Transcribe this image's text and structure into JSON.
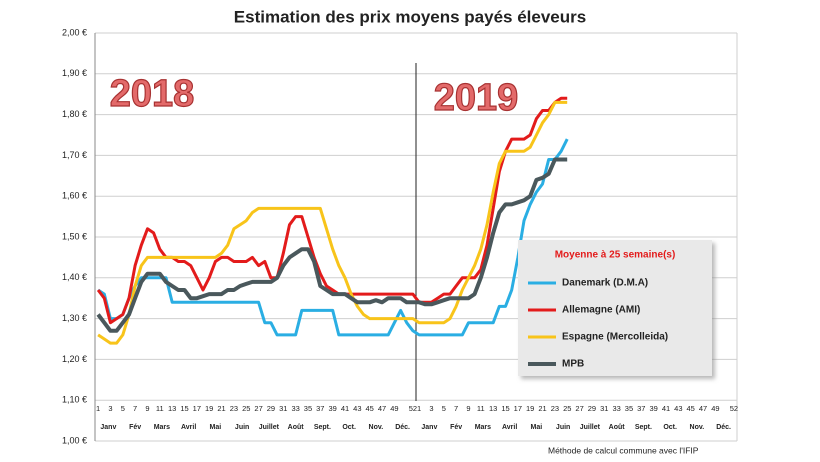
{
  "chart_data": {
    "type": "line",
    "title": "Estimation des prix moyens payés éleveurs",
    "annotations": [
      "2018",
      "2019"
    ],
    "legend_title": "Moyenne à  25 semaine(s)",
    "footnote": "Méthode de calcul commune avec l'IFIP",
    "months": [
      "Janv",
      "Fév",
      "Mars",
      "Avril",
      "Mai",
      "Juin",
      "Juillet",
      "Août",
      "Sept.",
      "Oct.",
      "Nov.",
      "Déc."
    ],
    "x": [
      1,
      2,
      3,
      4,
      5,
      6,
      7,
      8,
      9,
      10,
      11,
      12,
      13,
      14,
      15,
      16,
      17,
      18,
      19,
      20,
      21,
      22,
      23,
      24,
      25,
      26,
      27,
      28,
      29,
      30,
      31,
      32,
      33,
      34,
      35,
      36,
      37,
      38,
      39,
      40,
      41,
      42,
      43,
      44,
      45,
      46,
      47,
      48,
      49,
      50,
      51,
      52,
      53,
      54,
      55,
      56,
      57,
      58,
      59,
      60,
      61,
      62,
      63,
      64,
      65,
      66,
      67,
      68,
      69,
      70,
      71,
      72,
      73,
      74,
      75,
      76,
      77
    ],
    "series": [
      {
        "name": "Danemark (D.M.A)",
        "color": "#2aaee3",
        "values": [
          1.37,
          1.36,
          1.3,
          1.3,
          1.31,
          1.35,
          1.38,
          1.4,
          1.4,
          1.4,
          1.4,
          1.4,
          1.34,
          1.34,
          1.34,
          1.34,
          1.34,
          1.34,
          1.34,
          1.34,
          1.34,
          1.34,
          1.34,
          1.34,
          1.34,
          1.34,
          1.34,
          1.29,
          1.29,
          1.26,
          1.26,
          1.26,
          1.26,
          1.32,
          1.32,
          1.32,
          1.32,
          1.32,
          1.32,
          1.26,
          1.26,
          1.26,
          1.26,
          1.26,
          1.26,
          1.26,
          1.26,
          1.26,
          1.29,
          1.32,
          1.29,
          1.27,
          1.26,
          1.26,
          1.26,
          1.26,
          1.26,
          1.26,
          1.26,
          1.26,
          1.29,
          1.29,
          1.29,
          1.29,
          1.29,
          1.33,
          1.33,
          1.37,
          1.45,
          1.54,
          1.58,
          1.61,
          1.63,
          1.69,
          1.69,
          1.71,
          1.74
        ]
      },
      {
        "name": "Allemagne (AMI)",
        "color": "#e31b1b",
        "values": [
          1.37,
          1.35,
          1.29,
          1.3,
          1.31,
          1.35,
          1.43,
          1.48,
          1.52,
          1.51,
          1.47,
          1.45,
          1.45,
          1.44,
          1.44,
          1.43,
          1.4,
          1.37,
          1.4,
          1.44,
          1.45,
          1.45,
          1.44,
          1.44,
          1.44,
          1.45,
          1.43,
          1.44,
          1.4,
          1.4,
          1.46,
          1.53,
          1.55,
          1.55,
          1.5,
          1.45,
          1.41,
          1.38,
          1.37,
          1.36,
          1.36,
          1.36,
          1.36,
          1.36,
          1.36,
          1.36,
          1.36,
          1.36,
          1.36,
          1.36,
          1.36,
          1.36,
          1.34,
          1.34,
          1.34,
          1.35,
          1.36,
          1.36,
          1.38,
          1.4,
          1.4,
          1.4,
          1.42,
          1.48,
          1.57,
          1.66,
          1.71,
          1.74,
          1.74,
          1.74,
          1.75,
          1.79,
          1.81,
          1.81,
          1.83,
          1.84,
          1.84
        ]
      },
      {
        "name": "Espagne (Mercolleida)",
        "color": "#f8c41a",
        "values": [
          1.26,
          1.25,
          1.24,
          1.24,
          1.26,
          1.31,
          1.38,
          1.43,
          1.45,
          1.45,
          1.45,
          1.45,
          1.45,
          1.45,
          1.45,
          1.45,
          1.45,
          1.45,
          1.45,
          1.45,
          1.46,
          1.48,
          1.52,
          1.53,
          1.54,
          1.56,
          1.57,
          1.57,
          1.57,
          1.57,
          1.57,
          1.57,
          1.57,
          1.57,
          1.57,
          1.57,
          1.57,
          1.52,
          1.47,
          1.43,
          1.4,
          1.36,
          1.33,
          1.31,
          1.3,
          1.3,
          1.3,
          1.3,
          1.3,
          1.3,
          1.3,
          1.3,
          1.29,
          1.29,
          1.29,
          1.29,
          1.29,
          1.3,
          1.33,
          1.37,
          1.4,
          1.43,
          1.47,
          1.53,
          1.61,
          1.68,
          1.71,
          1.71,
          1.71,
          1.71,
          1.72,
          1.75,
          1.78,
          1.8,
          1.83,
          1.83,
          1.83
        ]
      },
      {
        "name": "MPB",
        "color": "#4a585c",
        "values": [
          1.31,
          1.29,
          1.27,
          1.27,
          1.29,
          1.31,
          1.35,
          1.39,
          1.41,
          1.41,
          1.41,
          1.39,
          1.38,
          1.37,
          1.37,
          1.35,
          1.35,
          1.355,
          1.36,
          1.36,
          1.36,
          1.37,
          1.37,
          1.38,
          1.385,
          1.39,
          1.39,
          1.39,
          1.39,
          1.4,
          1.43,
          1.45,
          1.46,
          1.47,
          1.47,
          1.44,
          1.38,
          1.37,
          1.36,
          1.36,
          1.36,
          1.35,
          1.34,
          1.34,
          1.34,
          1.345,
          1.34,
          1.35,
          1.35,
          1.35,
          1.34,
          1.34,
          1.34,
          1.335,
          1.335,
          1.34,
          1.345,
          1.35,
          1.35,
          1.35,
          1.35,
          1.36,
          1.4,
          1.45,
          1.51,
          1.56,
          1.58,
          1.58,
          1.585,
          1.59,
          1.6,
          1.64,
          1.645,
          1.655,
          1.69,
          1.69,
          1.69
        ]
      }
    ],
    "xlim": [
      0.5,
      104.5
    ],
    "xticks": [
      1,
      3,
      5,
      7,
      9,
      11,
      13,
      15,
      17,
      19,
      21,
      23,
      25,
      27,
      29,
      31,
      33,
      35,
      37,
      39,
      41,
      43,
      45,
      47,
      49,
      52,
      {
        "value": 53,
        "label": "1"
      },
      {
        "value": 55,
        "label": "3"
      },
      {
        "value": 57,
        "label": "5"
      },
      {
        "value": 59,
        "label": "7"
      },
      {
        "value": 61,
        "label": "9"
      },
      {
        "value": 63,
        "label": "11"
      },
      {
        "value": 65,
        "label": "13"
      },
      {
        "value": 67,
        "label": "15"
      },
      {
        "value": 69,
        "label": "17"
      },
      {
        "value": 71,
        "label": "19"
      },
      {
        "value": 73,
        "label": "21"
      },
      {
        "value": 75,
        "label": "23"
      },
      {
        "value": 77,
        "label": "25"
      },
      {
        "value": 79,
        "label": "27"
      },
      {
        "value": 81,
        "label": "29"
      },
      {
        "value": 83,
        "label": "31"
      },
      {
        "value": 85,
        "label": "33"
      },
      {
        "value": 87,
        "label": "35"
      },
      {
        "value": 89,
        "label": "37"
      },
      {
        "value": 91,
        "label": "39"
      },
      {
        "value": 93,
        "label": "41"
      },
      {
        "value": 95,
        "label": "43"
      },
      {
        "value": 97,
        "label": "45"
      },
      {
        "value": 99,
        "label": "47"
      },
      {
        "value": 101,
        "label": "49"
      },
      {
        "value": 104,
        "label": "52"
      }
    ],
    "ylim": [
      1.0,
      2.0
    ],
    "yticks": [
      {
        "value": 1.0,
        "label": "1,00 €"
      },
      {
        "value": 1.1,
        "label": "1,10 €"
      },
      {
        "value": 1.2,
        "label": "1,20 €"
      },
      {
        "value": 1.3,
        "label": "1,30 €"
      },
      {
        "value": 1.4,
        "label": "1,40 €"
      },
      {
        "value": 1.5,
        "label": "1,50 €"
      },
      {
        "value": 1.6,
        "label": "1,60 €"
      },
      {
        "value": 1.7,
        "label": "1,70 €"
      },
      {
        "value": 1.8,
        "label": "1,80 €"
      },
      {
        "value": 1.9,
        "label": "1,90 €"
      },
      {
        "value": 2.0,
        "label": "2,00 €"
      }
    ],
    "grid": true
  }
}
